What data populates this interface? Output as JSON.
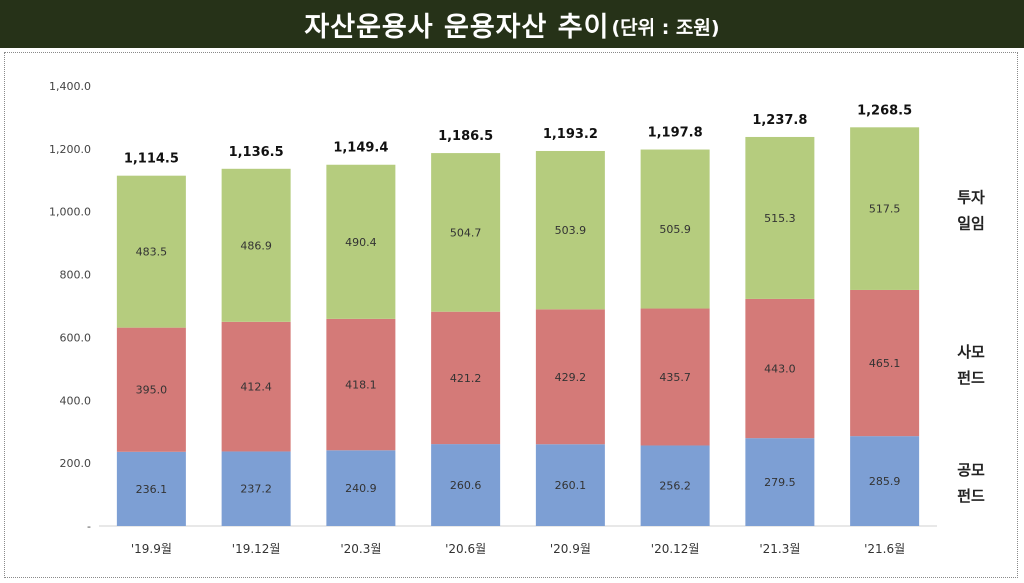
{
  "title": {
    "main": "자산운용사 운용자산 추이",
    "unit": "(단위 : 조원)"
  },
  "chart_data": {
    "type": "bar",
    "stacked": true,
    "categories": [
      "'19.9월",
      "'19.12월",
      "'20.3월",
      "'20.6월",
      "'20.9월",
      "'20.12월",
      "'21.3월",
      "'21.6월"
    ],
    "series": [
      {
        "name": "공모 펀드",
        "color": "#7d9fd4",
        "values": [
          236.1,
          237.2,
          240.9,
          260.6,
          260.1,
          256.2,
          279.5,
          285.9
        ]
      },
      {
        "name": "사모 펀드",
        "color": "#d47a78",
        "values": [
          395.0,
          412.4,
          418.1,
          421.2,
          429.2,
          435.7,
          443.0,
          465.1
        ]
      },
      {
        "name": "투자 일임",
        "color": "#b5cc7e",
        "values": [
          483.5,
          486.9,
          490.4,
          504.7,
          503.9,
          505.9,
          515.3,
          517.5
        ]
      }
    ],
    "series_label_lines": [
      [
        "공모",
        "펀드"
      ],
      [
        "사모",
        "펀드"
      ],
      [
        "투자",
        "일임"
      ]
    ],
    "totals": [
      "1,114.5",
      "1,136.5",
      "1,149.4",
      "1,186.5",
      "1,193.2",
      "1,197.8",
      "1,237.8",
      "1,268.5"
    ],
    "value_labels": [
      [
        "236.1",
        "237.2",
        "240.9",
        "260.6",
        "260.1",
        "256.2",
        "279.5",
        "285.9"
      ],
      [
        "395.0",
        "412.4",
        "418.1",
        "421.2",
        "429.2",
        "435.7",
        "443.0",
        "465.1"
      ],
      [
        "483.5",
        "486.9",
        "490.4",
        "504.7",
        "503.9",
        "505.9",
        "515.3",
        "517.5"
      ]
    ],
    "yticks": [
      0,
      200,
      400,
      600,
      800,
      1000,
      1200,
      1400
    ],
    "ytick_labels": [
      "-",
      "200.0",
      "400.0",
      "600.0",
      "800.0",
      "1,000.0",
      "1,200.0",
      "1,400.0"
    ],
    "ylim": [
      0,
      1400
    ],
    "grid": false,
    "legend": "right, inline series labels"
  }
}
